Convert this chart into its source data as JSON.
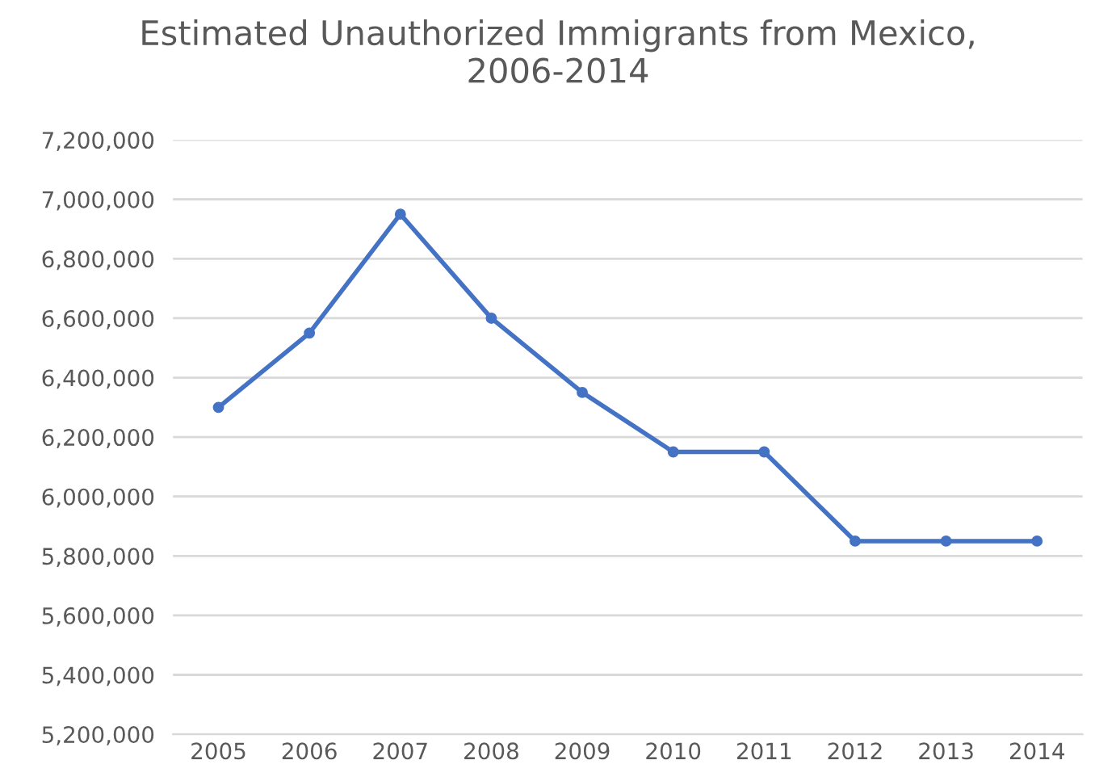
{
  "chart_data": {
    "type": "line",
    "title": "Estimated Unauthorized Immigrants from Mexico,\n2006-2014",
    "categories": [
      "2005",
      "2006",
      "2007",
      "2008",
      "2009",
      "2010",
      "2011",
      "2012",
      "2013",
      "2014"
    ],
    "series": [
      {
        "color": "#4472c4",
        "values": [
          6300000,
          6550000,
          6950000,
          6600000,
          6350000,
          6150000,
          6150000,
          5850000,
          5850000,
          5850000
        ]
      }
    ],
    "ylim": [
      5200000,
      7200000
    ],
    "yticks": [
      {
        "value": 5200000,
        "label": "5,200,000"
      },
      {
        "value": 5400000,
        "label": "5,400,000"
      },
      {
        "value": 5600000,
        "label": "5,600,000"
      },
      {
        "value": 5800000,
        "label": "5,800,000"
      },
      {
        "value": 6000000,
        "label": "6,000,000"
      },
      {
        "value": 6200000,
        "label": "6,200,000"
      },
      {
        "value": 6400000,
        "label": "6,400,000"
      },
      {
        "value": 6600000,
        "label": "6,600,000"
      },
      {
        "value": 6800000,
        "label": "6,800,000"
      },
      {
        "value": 7000000,
        "label": "7,000,000"
      },
      {
        "value": 7200000,
        "label": "7,200,000"
      }
    ],
    "grid": "y",
    "marker": "circle",
    "line_style": "solid"
  }
}
